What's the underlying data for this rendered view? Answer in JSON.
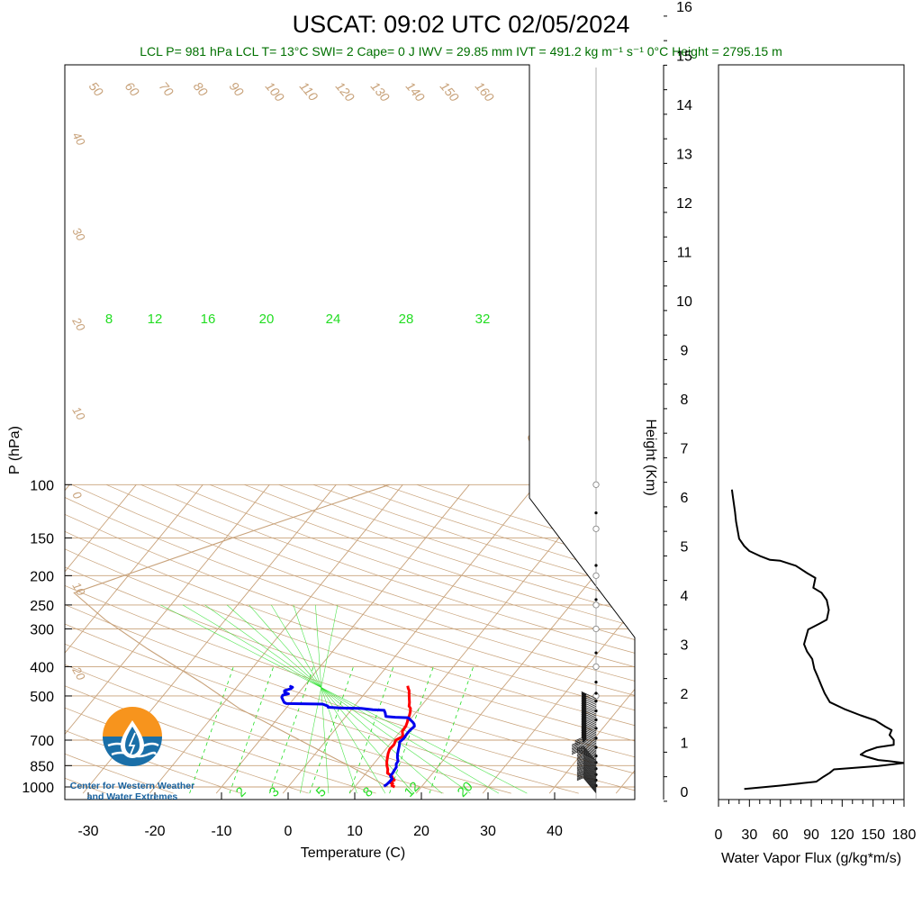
{
  "title": "USCAT: 09:02 UTC 02/05/2024",
  "subtitle": "LCL P= 981 hPa  LCL T= 13°C  SWI= 2  Cape= 0 J  IWV = 29.85 mm  IVT = 491.2 kg m⁻¹ s⁻¹  0°C Height = 2795.15 m",
  "logo": {
    "line1": "Center for Western Weather",
    "line2": "and Water Extremes"
  },
  "colors": {
    "temperature": "#ff0000",
    "dewpoint": "#0000ee",
    "isotherm": "#c8a27a",
    "mixing_ratio": "#22dd22",
    "subtitle": "#007000"
  },
  "chart_data": [
    {
      "type": "line",
      "name": "skew-t",
      "xlabel": "Temperature (C)",
      "ylabel": "P (hPa)",
      "x_ticks": [
        "-30",
        "-20",
        "-10",
        "0",
        "10",
        "20",
        "30",
        "40"
      ],
      "x_tick_values": [
        -30,
        -20,
        -10,
        0,
        10,
        20,
        30,
        40
      ],
      "y_ticks": [
        "100",
        "150",
        "200",
        "250",
        "300",
        "400",
        "500",
        "700",
        "850",
        "1000"
      ],
      "y_tick_values": [
        100,
        150,
        200,
        250,
        300,
        400,
        500,
        700,
        850,
        1000
      ],
      "xlim": [
        -33,
        44
      ],
      "ylim": [
        1050,
        100
      ],
      "y_scale": "log",
      "series": [
        {
          "color": "#ff0000",
          "points": [
            [
              16.0,
              1000
            ],
            [
              15.4,
              990
            ],
            [
              15.3,
              975
            ],
            [
              14.6,
              965
            ],
            [
              15.1,
              950
            ],
            [
              14.6,
              935
            ],
            [
              14.2,
              920
            ],
            [
              13.2,
              900
            ],
            [
              12.8,
              875
            ],
            [
              12.2,
              850
            ],
            [
              11.7,
              825
            ],
            [
              11.3,
              800
            ],
            [
              10.9,
              775
            ],
            [
              10.6,
              750
            ],
            [
              10.7,
              725
            ],
            [
              10.4,
              700
            ],
            [
              11.0,
              680
            ],
            [
              10.3,
              655
            ],
            [
              10.2,
              630
            ],
            [
              9.9,
              610
            ],
            [
              9.6,
              595
            ],
            [
              9.4,
              580
            ],
            [
              9.1,
              565
            ],
            [
              8.7,
              550
            ],
            [
              8.2,
              540
            ],
            [
              7.8,
              525
            ],
            [
              7.3,
              510
            ],
            [
              6.8,
              495
            ],
            [
              6.3,
              480
            ],
            [
              5.8,
              470
            ],
            [
              5.5,
              463
            ]
          ]
        },
        {
          "color": "#0000ee",
          "points": [
            [
              14.3,
              995
            ],
            [
              14.5,
              980
            ],
            [
              14.6,
              960
            ],
            [
              14.6,
              940
            ],
            [
              14.0,
              920
            ],
            [
              14.0,
              900
            ],
            [
              13.9,
              885
            ],
            [
              13.8,
              860
            ],
            [
              13.4,
              840
            ],
            [
              13.3,
              820
            ],
            [
              12.8,
              800
            ],
            [
              12.4,
              780
            ],
            [
              12.0,
              755
            ],
            [
              11.6,
              730
            ],
            [
              11.2,
              710
            ],
            [
              11.4,
              690
            ],
            [
              11.3,
              670
            ],
            [
              11.3,
              650
            ],
            [
              11.5,
              630
            ],
            [
              11.2,
              620
            ],
            [
              10.7,
              610
            ],
            [
              10.1,
              600
            ],
            [
              9.5,
              590
            ],
            [
              7.5,
              588
            ],
            [
              6.0,
              585
            ],
            [
              5.5,
              570
            ],
            [
              5.0,
              558
            ],
            [
              3.2,
              555
            ],
            [
              1.3,
              550
            ],
            [
              -2.0,
              548
            ],
            [
              -3.8,
              545
            ],
            [
              -4.0,
              540
            ],
            [
              -5.0,
              532
            ],
            [
              -10.5,
              530
            ],
            [
              -11.0,
              525
            ],
            [
              -11.5,
              515
            ],
            [
              -12.0,
              505
            ],
            [
              -12.1,
              497
            ],
            [
              -11.4,
              492
            ],
            [
              -12.2,
              486
            ],
            [
              -12.4,
              480
            ],
            [
              -11.7,
              473
            ],
            [
              -11.6,
              468
            ],
            [
              -12.0,
              465
            ],
            [
              -12.0,
              462
            ]
          ]
        }
      ],
      "mixing_ratio_top_labels": [
        "8",
        "12",
        "16",
        "20",
        "24",
        "28",
        "32"
      ],
      "mixing_ratio_bottom_labels": [
        "2",
        "3",
        "5",
        "8",
        "12",
        "20"
      ],
      "dry_adiabat_labels": [
        "50",
        "60",
        "70",
        "80",
        "90",
        "100",
        "110",
        "120",
        "130",
        "140",
        "150",
        "160"
      ],
      "isotherm_labels": [
        "40",
        "30",
        "20",
        "10",
        "0",
        "10",
        "20"
      ],
      "moist_labels": [
        "30",
        "20",
        "10",
        "0",
        "10",
        "20",
        "30"
      ]
    },
    {
      "type": "line",
      "name": "water-vapor-flux",
      "xlabel": "Water Vapor Flux (g/kg*m/s)",
      "ylabel": "Height (Km)",
      "x_ticks": [
        "0",
        "30",
        "60",
        "90",
        "120",
        "150",
        "180"
      ],
      "x_tick_values": [
        0,
        30,
        60,
        90,
        120,
        150,
        180
      ],
      "y_ticks": [
        "0",
        "1",
        "2",
        "3",
        "4",
        "5",
        "6",
        "7",
        "8",
        "9",
        "10",
        "11",
        "12",
        "13",
        "14",
        "15",
        "16"
      ],
      "xlim": [
        0,
        180
      ],
      "ylim": [
        -0.2,
        16.4
      ],
      "series": [
        {
          "color": "#000000",
          "points": [
            [
              25,
              0.05
            ],
            [
              60,
              0.12
            ],
            [
              95,
              0.2
            ],
            [
              102,
              0.3
            ],
            [
              108,
              0.38
            ],
            [
              112,
              0.45
            ],
            [
              155,
              0.52
            ],
            [
              180,
              0.58
            ],
            [
              165,
              0.62
            ],
            [
              155,
              0.64
            ],
            [
              145,
              0.7
            ],
            [
              138,
              0.75
            ],
            [
              143,
              0.82
            ],
            [
              154,
              0.9
            ],
            [
              170,
              0.95
            ],
            [
              170,
              1.05
            ],
            [
              166,
              1.15
            ],
            [
              168,
              1.25
            ],
            [
              162,
              1.32
            ],
            [
              152,
              1.45
            ],
            [
              138,
              1.55
            ],
            [
              122,
              1.68
            ],
            [
              108,
              1.82
            ],
            [
              103,
              2.0
            ],
            [
              100,
              2.15
            ],
            [
              96,
              2.35
            ],
            [
              93,
              2.5
            ],
            [
              91,
              2.7
            ],
            [
              86,
              2.85
            ],
            [
              83,
              3.0
            ],
            [
              85,
              3.15
            ],
            [
              87,
              3.3
            ],
            [
              98,
              3.42
            ],
            [
              105,
              3.5
            ],
            [
              107,
              3.7
            ],
            [
              105,
              3.9
            ],
            [
              100,
              4.05
            ],
            [
              92,
              4.15
            ],
            [
              94,
              4.35
            ],
            [
              86,
              4.45
            ],
            [
              75,
              4.6
            ],
            [
              60,
              4.7
            ],
            [
              50,
              4.72
            ],
            [
              40,
              4.8
            ],
            [
              30,
              4.9
            ],
            [
              25,
              5.0
            ],
            [
              20,
              5.15
            ],
            [
              17,
              5.5
            ],
            [
              16,
              5.7
            ],
            [
              14,
              6.0
            ],
            [
              13,
              6.15
            ]
          ]
        }
      ]
    }
  ]
}
